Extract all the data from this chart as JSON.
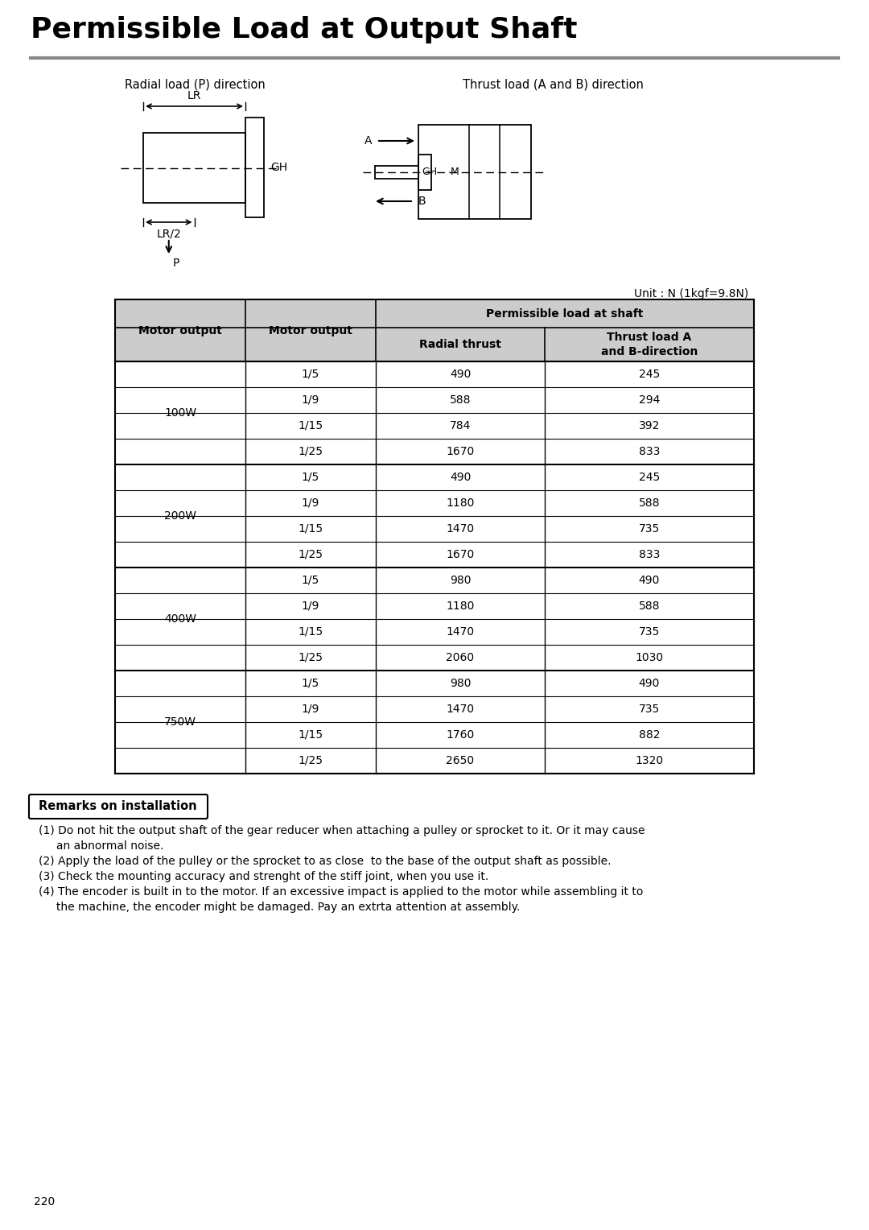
{
  "title": "Permissible Load at Output Shaft",
  "title_fontsize": 26,
  "title_fontweight": "bold",
  "separator_color": "#888888",
  "bg_color": "#ffffff",
  "diagram_label_left": "Radial load (P) direction",
  "diagram_label_right": "Thrust load (A and B) direction",
  "unit_text": "Unit : N (1kgf=9.8N)",
  "table_data": [
    [
      "100W",
      "1/5",
      "490",
      "245"
    ],
    [
      "100W",
      "1/9",
      "588",
      "294"
    ],
    [
      "100W",
      "1/15",
      "784",
      "392"
    ],
    [
      "100W",
      "1/25",
      "1670",
      "833"
    ],
    [
      "200W",
      "1/5",
      "490",
      "245"
    ],
    [
      "200W",
      "1/9",
      "1180",
      "588"
    ],
    [
      "200W",
      "1/15",
      "1470",
      "735"
    ],
    [
      "200W",
      "1/25",
      "1670",
      "833"
    ],
    [
      "400W",
      "1/5",
      "980",
      "490"
    ],
    [
      "400W",
      "1/9",
      "1180",
      "588"
    ],
    [
      "400W",
      "1/15",
      "1470",
      "735"
    ],
    [
      "400W",
      "1/25",
      "2060",
      "1030"
    ],
    [
      "750W",
      "1/5",
      "980",
      "490"
    ],
    [
      "750W",
      "1/9",
      "1470",
      "735"
    ],
    [
      "750W",
      "1/15",
      "1760",
      "882"
    ],
    [
      "750W",
      "1/25",
      "2650",
      "1320"
    ]
  ],
  "header_bg": "#cccccc",
  "remarks_title": "Remarks on installation",
  "remarks_lines": [
    "(1) Do not hit the output shaft of the gear reducer when attaching a pulley or sprocket to it. Or it may cause",
    "     an abnormal noise.",
    "(2) Apply the load of the pulley or the sprocket to as close  to the base of the output shaft as possible.",
    "(3) Check the mounting accuracy and strenght of the stiff joint, when you use it.",
    "(4) The encoder is built in to the motor. If an excessive impact is applied to the motor while assembling it to",
    "     the machine, the encoder might be damaged. Pay an extrta attention at assembly."
  ],
  "page_number": "220"
}
